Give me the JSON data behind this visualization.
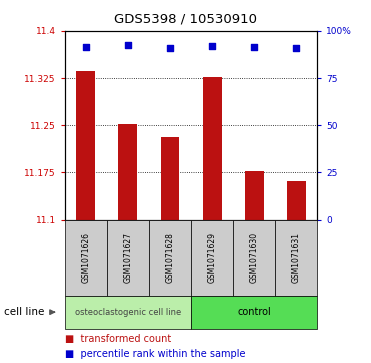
{
  "title": "GDS5398 / 10530910",
  "samples": [
    "GSM1071626",
    "GSM1071627",
    "GSM1071628",
    "GSM1071629",
    "GSM1071630",
    "GSM1071631"
  ],
  "bar_values": [
    11.336,
    11.252,
    11.232,
    11.326,
    11.178,
    11.162
  ],
  "percentile_values": [
    11.375,
    11.378,
    11.373,
    11.376,
    11.374,
    11.373
  ],
  "bar_color": "#bb1111",
  "dot_color": "#0000cc",
  "ylim_left": [
    11.1,
    11.4
  ],
  "yticks_left": [
    11.1,
    11.175,
    11.25,
    11.325,
    11.4
  ],
  "ytick_labels_left": [
    "11.1",
    "11.175",
    "11.25",
    "11.325",
    "11.4"
  ],
  "ylim_right": [
    0,
    100
  ],
  "yticks_right": [
    0,
    25,
    50,
    75,
    100
  ],
  "ytick_labels_right": [
    "0",
    "25",
    "50",
    "75",
    "100%"
  ],
  "group1_label": "osteoclastogenic cell line",
  "group2_label": "control",
  "group1_samples": [
    0,
    1,
    2
  ],
  "group2_samples": [
    3,
    4,
    5
  ],
  "group1_color": "#bbeeaa",
  "group2_color": "#55dd55",
  "cell_line_label": "cell line",
  "legend_label1": "transformed count",
  "legend_label2": "percentile rank within the sample",
  "background_color": "#ffffff",
  "label_box_color": "#cccccc",
  "title_fontsize": 9.5,
  "axis_fontsize": 7,
  "tick_fontsize": 6.5,
  "sample_fontsize": 5.5,
  "group_fontsize": 6,
  "legend_fontsize": 7,
  "cell_line_fontsize": 7.5
}
